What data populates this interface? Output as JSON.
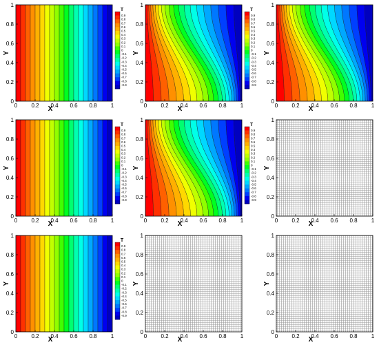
{
  "panels": [
    {
      "row": 0,
      "col": 0,
      "kind": "contour",
      "skew": 0.0,
      "colorbar": true
    },
    {
      "row": 0,
      "col": 1,
      "kind": "contour",
      "skew": 1.0,
      "colorbar": true
    },
    {
      "row": 0,
      "col": 2,
      "kind": "contour",
      "skew": 1.0,
      "colorbar": true
    },
    {
      "row": 1,
      "col": 0,
      "kind": "contour",
      "skew": 0.0,
      "colorbar": true
    },
    {
      "row": 1,
      "col": 1,
      "kind": "contour",
      "skew": 1.0,
      "colorbar": true
    },
    {
      "row": 1,
      "col": 2,
      "kind": "mesh",
      "skew": 0,
      "colorbar": false
    },
    {
      "row": 2,
      "col": 0,
      "kind": "contour",
      "skew": 0.0,
      "colorbar": true
    },
    {
      "row": 2,
      "col": 1,
      "kind": "mesh",
      "skew": 0,
      "colorbar": false
    },
    {
      "row": 2,
      "col": 2,
      "kind": "mesh",
      "skew": 0,
      "colorbar": false
    }
  ],
  "axes": {
    "xlabel": "X",
    "ylabel": "Y",
    "xticks": [
      "0",
      "0.2",
      "0.4",
      "0.6",
      "0.8",
      "1"
    ],
    "yticks": [
      "0",
      "0.2",
      "0.4",
      "0.6",
      "0.8",
      "1"
    ]
  },
  "colorbar": {
    "title": "T",
    "levels": [
      "0.9",
      "0.8",
      "0.7",
      "0.6",
      "0.5",
      "0.4",
      "0.3",
      "0.2",
      "0.1",
      "0",
      "-0.1",
      "-0.2",
      "-0.3",
      "-0.4",
      "-0.5",
      "-0.6",
      "-0.7",
      "-0.8",
      "-0.9"
    ]
  },
  "colors": {
    "palette": [
      "#ff0000",
      "#ff3000",
      "#ff6000",
      "#ff9000",
      "#ffb000",
      "#ffd800",
      "#f0ff00",
      "#c0ff00",
      "#90ff00",
      "#40ff00",
      "#00ff20",
      "#00ff70",
      "#00ffb0",
      "#00ffe8",
      "#00d8ff",
      "#00a8ff",
      "#0078ff",
      "#0040ff",
      "#0000f0",
      "#0000c0"
    ],
    "mesh": "#9a9a9a",
    "frame": "#000000"
  }
}
